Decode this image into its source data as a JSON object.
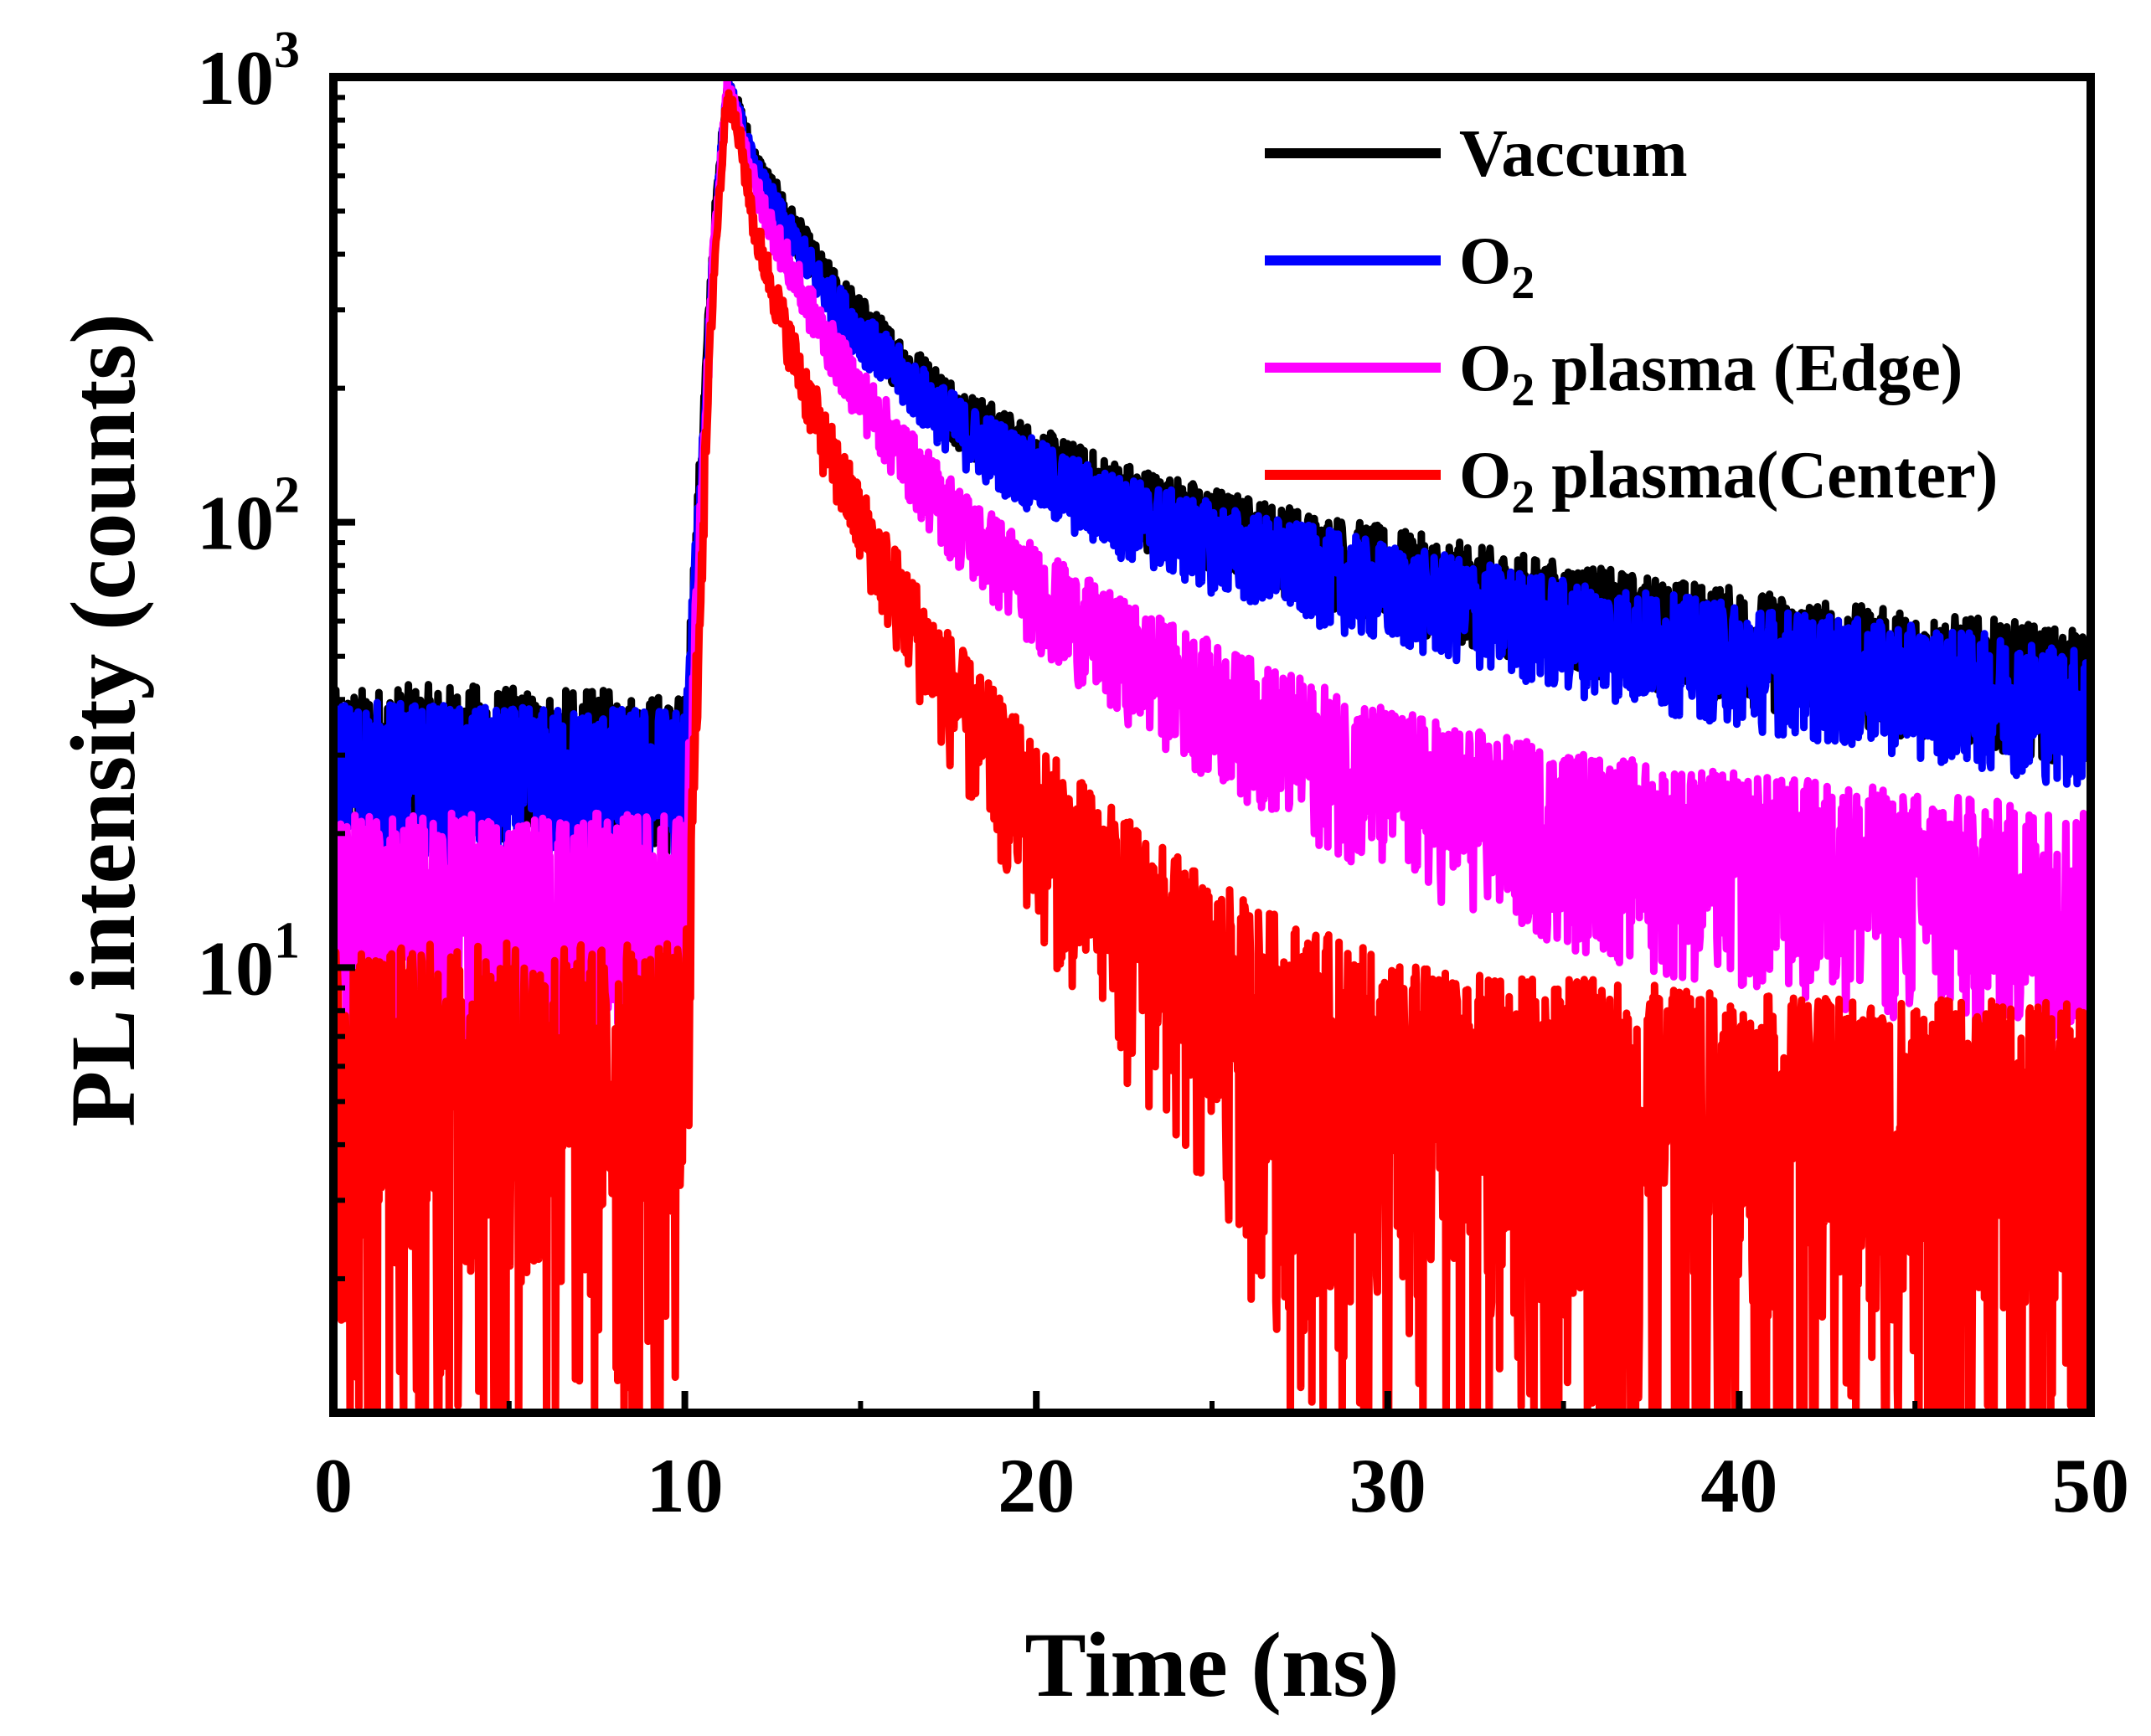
{
  "chart_data": {
    "type": "line",
    "xlabel": "Time (ns)",
    "ylabel": "PL intensity (counts)",
    "xlim": [
      0,
      50
    ],
    "ylim": [
      1.0,
      1000
    ],
    "yscale": "log",
    "grid": false,
    "legend_position": "top-right",
    "x_ticks": [
      0,
      10,
      20,
      30,
      40,
      50
    ],
    "x_tick_labels": [
      "0",
      "10",
      "20",
      "30",
      "40",
      "50"
    ],
    "y_ticks": [
      10,
      100,
      1000
    ],
    "y_tick_labels": [
      {
        "base": "10",
        "exp": "1"
      },
      {
        "base": "10",
        "exp": "2"
      },
      {
        "base": "10",
        "exp": "3"
      }
    ],
    "series": [
      {
        "name": "Vaccum",
        "label": {
          "main": "O",
          "sub": "",
          "rest": ""
        },
        "color": "#000000",
        "x": [
          0,
          2,
          4,
          6,
          8,
          10,
          10.4,
          10.8,
          11.2,
          11.6,
          12,
          13,
          14,
          15,
          16,
          17,
          18,
          20,
          22,
          25,
          28,
          30,
          33,
          35,
          38,
          40,
          43,
          45,
          48,
          50
        ],
        "y": [
          30,
          31,
          31,
          30,
          30,
          29,
          110,
          420,
          960,
          800,
          640,
          470,
          350,
          285,
          235,
          200,
          170,
          138,
          117,
          98,
          85,
          78,
          69,
          64,
          58,
          55,
          50,
          48,
          45,
          42
        ]
      },
      {
        "name": "O2",
        "label": {
          "main": "O",
          "sub": "2",
          "rest": ""
        },
        "color": "#0000ff",
        "x": [
          0,
          2,
          4,
          6,
          8,
          10,
          10.4,
          10.8,
          11.2,
          11.6,
          12,
          13,
          14,
          15,
          16,
          17,
          18,
          20,
          22,
          25,
          28,
          30,
          33,
          35,
          38,
          40,
          43,
          45,
          48,
          50
        ],
        "y": [
          28,
          28,
          27,
          27,
          27,
          27,
          100,
          400,
          950,
          780,
          610,
          440,
          330,
          265,
          220,
          185,
          158,
          128,
          108,
          90,
          78,
          71,
          63,
          58,
          53,
          50,
          46,
          44,
          41,
          38
        ]
      },
      {
        "name": "O2 plasma (Edge)",
        "label": {
          "main": "O",
          "sub": "2",
          "rest": " plasma (Edge)"
        },
        "color": "#ff00ff",
        "x": [
          0,
          2,
          4,
          6,
          8,
          10,
          10.4,
          10.8,
          11.2,
          11.6,
          12,
          13,
          14,
          15,
          16,
          17,
          18,
          20,
          22,
          25,
          28,
          30,
          33,
          35,
          38,
          40,
          43,
          45,
          48,
          50
        ],
        "y": [
          14,
          14,
          14,
          14,
          14,
          14,
          80,
          380,
          940,
          760,
          560,
          370,
          260,
          195,
          150,
          118,
          96,
          70,
          54,
          40,
          31,
          27,
          23,
          21,
          19,
          18,
          17,
          16,
          15,
          14
        ]
      },
      {
        "name": "O2 plasma(Center)",
        "label": {
          "main": "O",
          "sub": "2",
          "rest": " plasma(Center)"
        },
        "color": "#ff0000",
        "x": [
          0,
          2,
          4,
          6,
          8,
          10,
          10.4,
          10.8,
          11.2,
          11.6,
          12,
          13,
          14,
          15,
          16,
          17,
          18,
          20,
          22,
          25,
          28,
          30,
          33,
          35,
          38,
          40,
          43,
          45,
          48,
          50
        ],
        "y": [
          6,
          6,
          6,
          6,
          6,
          6,
          60,
          340,
          930,
          700,
          450,
          250,
          150,
          100,
          70,
          50,
          37,
          22,
          15,
          9,
          6.5,
          5.5,
          5,
          5,
          4.8,
          4.6,
          4.5,
          4.5,
          4.4,
          4.4
        ]
      }
    ]
  }
}
